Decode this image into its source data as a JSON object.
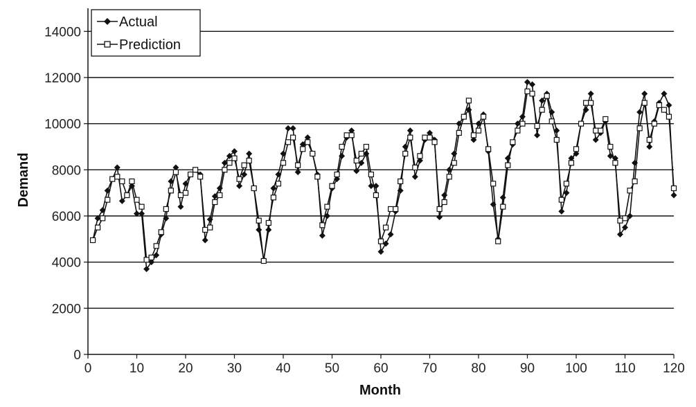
{
  "chart_data": {
    "type": "line",
    "title": "",
    "xlabel": "Month",
    "ylabel": "Demand",
    "xlim": [
      0,
      120
    ],
    "ylim": [
      0,
      15000
    ],
    "x_ticks": [
      0,
      10,
      20,
      30,
      40,
      50,
      60,
      70,
      80,
      90,
      100,
      110,
      120
    ],
    "y_ticks": [
      0,
      2000,
      4000,
      6000,
      8000,
      10000,
      12000,
      14000
    ],
    "grid": "horizontal",
    "legend": "top-left",
    "x": [
      1,
      2,
      3,
      4,
      5,
      6,
      7,
      8,
      9,
      10,
      11,
      12,
      13,
      14,
      15,
      16,
      17,
      18,
      19,
      20,
      21,
      22,
      23,
      24,
      25,
      26,
      27,
      28,
      29,
      30,
      31,
      32,
      33,
      34,
      35,
      36,
      37,
      38,
      39,
      40,
      41,
      42,
      43,
      44,
      45,
      46,
      47,
      48,
      49,
      50,
      51,
      52,
      53,
      54,
      55,
      56,
      57,
      58,
      59,
      60,
      61,
      62,
      63,
      64,
      65,
      66,
      67,
      68,
      69,
      70,
      71,
      72,
      73,
      74,
      75,
      76,
      77,
      78,
      79,
      80,
      81,
      82,
      83,
      84,
      85,
      86,
      87,
      88,
      89,
      90,
      91,
      92,
      93,
      94,
      95,
      96,
      97,
      98,
      99,
      100,
      101,
      102,
      103,
      104,
      105,
      106,
      107,
      108,
      109,
      110,
      111,
      112,
      113,
      114,
      115,
      116,
      117,
      118,
      119,
      120
    ],
    "series": [
      {
        "name": "Actual",
        "marker": "filled-diamond",
        "values": [
          4950,
          5900,
          6250,
          7100,
          7600,
          8100,
          6650,
          6900,
          7300,
          6100,
          6100,
          3700,
          4000,
          4300,
          5200,
          5900,
          7500,
          8100,
          6400,
          7400,
          7800,
          8000,
          7800,
          4950,
          5850,
          6850,
          7200,
          8300,
          8600,
          8800,
          7300,
          7800,
          8700,
          7200,
          5400,
          4100,
          5400,
          7200,
          7800,
          8700,
          9800,
          9800,
          7900,
          9100,
          9400,
          8700,
          7800,
          5150,
          6000,
          7200,
          7600,
          8600,
          9400,
          9700,
          7950,
          8300,
          8700,
          7300,
          7300,
          4450,
          4800,
          5200,
          6200,
          7100,
          9000,
          9700,
          7700,
          8400,
          9300,
          9600,
          9300,
          5950,
          6900,
          8000,
          8700,
          10000,
          10300,
          10600,
          9300,
          10000,
          10400,
          8800,
          6500,
          5000,
          6800,
          8500,
          9100,
          10000,
          10300,
          11800,
          11700,
          9500,
          11000,
          11300,
          10500,
          9700,
          6200,
          7000,
          8500,
          8700,
          10000,
          10600,
          11300,
          9300,
          9600,
          10100,
          8600,
          8500,
          5200,
          5500,
          6000,
          8300,
          10500,
          11300,
          9000,
          10100,
          10900,
          11300,
          10800,
          6900
        ]
      },
      {
        "name": "Prediction",
        "marker": "open-square",
        "values": [
          4950,
          5500,
          5900,
          6700,
          7600,
          7700,
          7500,
          6900,
          7500,
          6700,
          6400,
          4100,
          4200,
          4700,
          5300,
          6300,
          7100,
          7900,
          6900,
          7000,
          7800,
          8000,
          7700,
          5400,
          5500,
          6600,
          6900,
          8000,
          8300,
          8500,
          7600,
          8200,
          8400,
          7200,
          5800,
          4050,
          5700,
          6800,
          7400,
          8300,
          9200,
          9400,
          8200,
          8900,
          9200,
          8700,
          7700,
          5600,
          6400,
          7300,
          7800,
          9000,
          9500,
          9500,
          8400,
          8700,
          9000,
          7800,
          6900,
          4900,
          5500,
          6300,
          6300,
          7500,
          8700,
          9400,
          8100,
          8600,
          9400,
          9400,
          9200,
          6300,
          6600,
          7700,
          8300,
          9600,
          10300,
          11000,
          9500,
          9700,
          10300,
          8900,
          7400,
          4900,
          6400,
          8200,
          9200,
          9700,
          10000,
          11400,
          11300,
          9900,
          10600,
          11200,
          10100,
          9300,
          6700,
          7400,
          8300,
          8900,
          10000,
          10900,
          10900,
          9700,
          9700,
          10200,
          9000,
          8300,
          5800,
          5900,
          7100,
          7500,
          9800,
          10900,
          9300,
          10000,
          10800,
          10600,
          10300,
          7200
        ]
      }
    ]
  }
}
